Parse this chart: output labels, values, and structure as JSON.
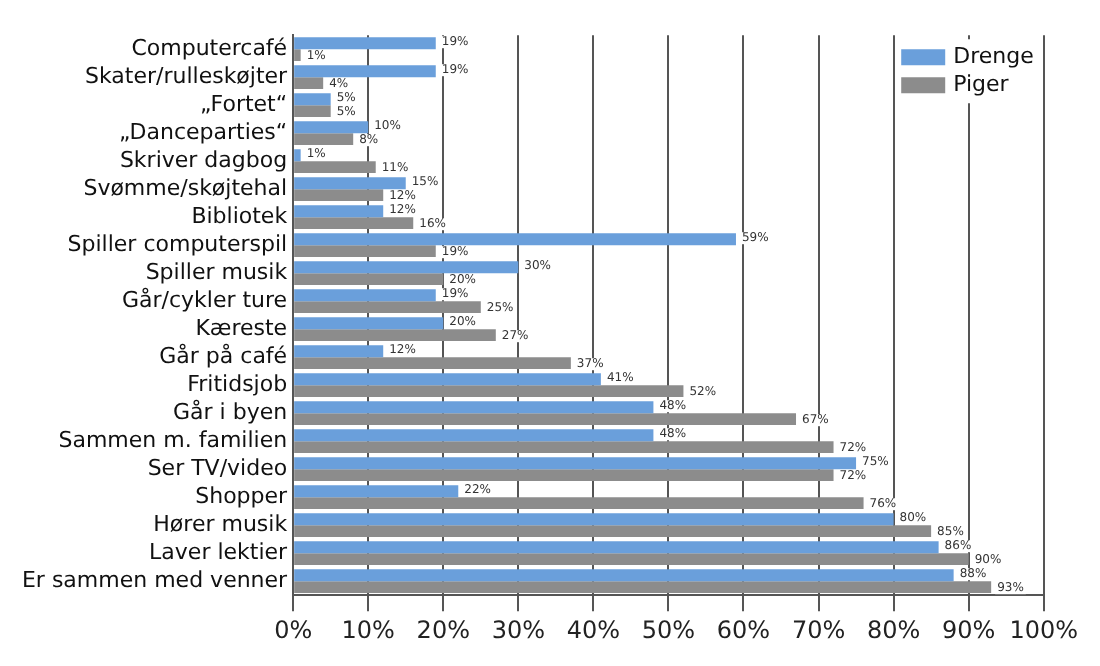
{
  "chart_data": {
    "type": "bar",
    "orientation": "horizontal",
    "categories": [
      "Computercafé",
      "Skater/rulleskøjter",
      "„Fortet“",
      "„Danceparties“",
      "Skriver dagbog",
      "Svømme/skøjtehal",
      "Bibliotek",
      "Spiller computerspil",
      "Spiller musik",
      "Går/cykler ture",
      "Kæreste",
      "Går på café",
      "Fritidsjob",
      "Går i byen",
      "Sammen m. familien",
      "Ser TV/video",
      "Shopper",
      "Hører musik",
      "Laver lektier",
      "Er sammen med venner"
    ],
    "series": [
      {
        "name": "Drenge",
        "color": "#6a9fdb",
        "values": [
          19,
          19,
          5,
          10,
          1,
          15,
          12,
          59,
          30,
          19,
          20,
          12,
          41,
          48,
          48,
          75,
          22,
          80,
          86,
          88
        ],
        "value_labels": [
          "19%",
          "19%",
          "5%",
          "10%",
          "1%",
          "15%",
          "12%",
          "59%",
          "30%",
          "19%",
          "20%",
          "12%",
          "41%",
          "48%",
          "48%",
          "75%",
          "22%",
          "80%",
          "86%",
          "88%"
        ]
      },
      {
        "name": "Piger",
        "color": "#8c8c8c",
        "values": [
          1,
          4,
          5,
          8,
          11,
          12,
          16,
          19,
          20,
          25,
          27,
          37,
          52,
          67,
          72,
          72,
          76,
          85,
          90,
          93
        ],
        "value_labels": [
          "1%",
          "4%",
          "5%",
          "8%",
          "11%",
          "12%",
          "16%",
          "19%",
          "20%",
          "25%",
          "27%",
          "37%",
          "52%",
          "67%",
          "72%",
          "72%",
          "76%",
          "85%",
          "90%",
          "93%"
        ]
      }
    ],
    "xlim": [
      0,
      100
    ],
    "xticks": [
      {
        "value": 0,
        "label": "0%"
      },
      {
        "value": 10,
        "label": "10%"
      },
      {
        "value": 20,
        "label": "20%"
      },
      {
        "value": 30,
        "label": "30%"
      },
      {
        "value": 40,
        "label": "40%"
      },
      {
        "value": 50,
        "label": "50%"
      },
      {
        "value": 60,
        "label": "60%"
      },
      {
        "value": 70,
        "label": "70%"
      },
      {
        "value": 80,
        "label": "80%"
      },
      {
        "value": 90,
        "label": "90%"
      },
      {
        "value": 100,
        "label": "100%"
      }
    ],
    "grid": "x",
    "legend": "top right"
  }
}
